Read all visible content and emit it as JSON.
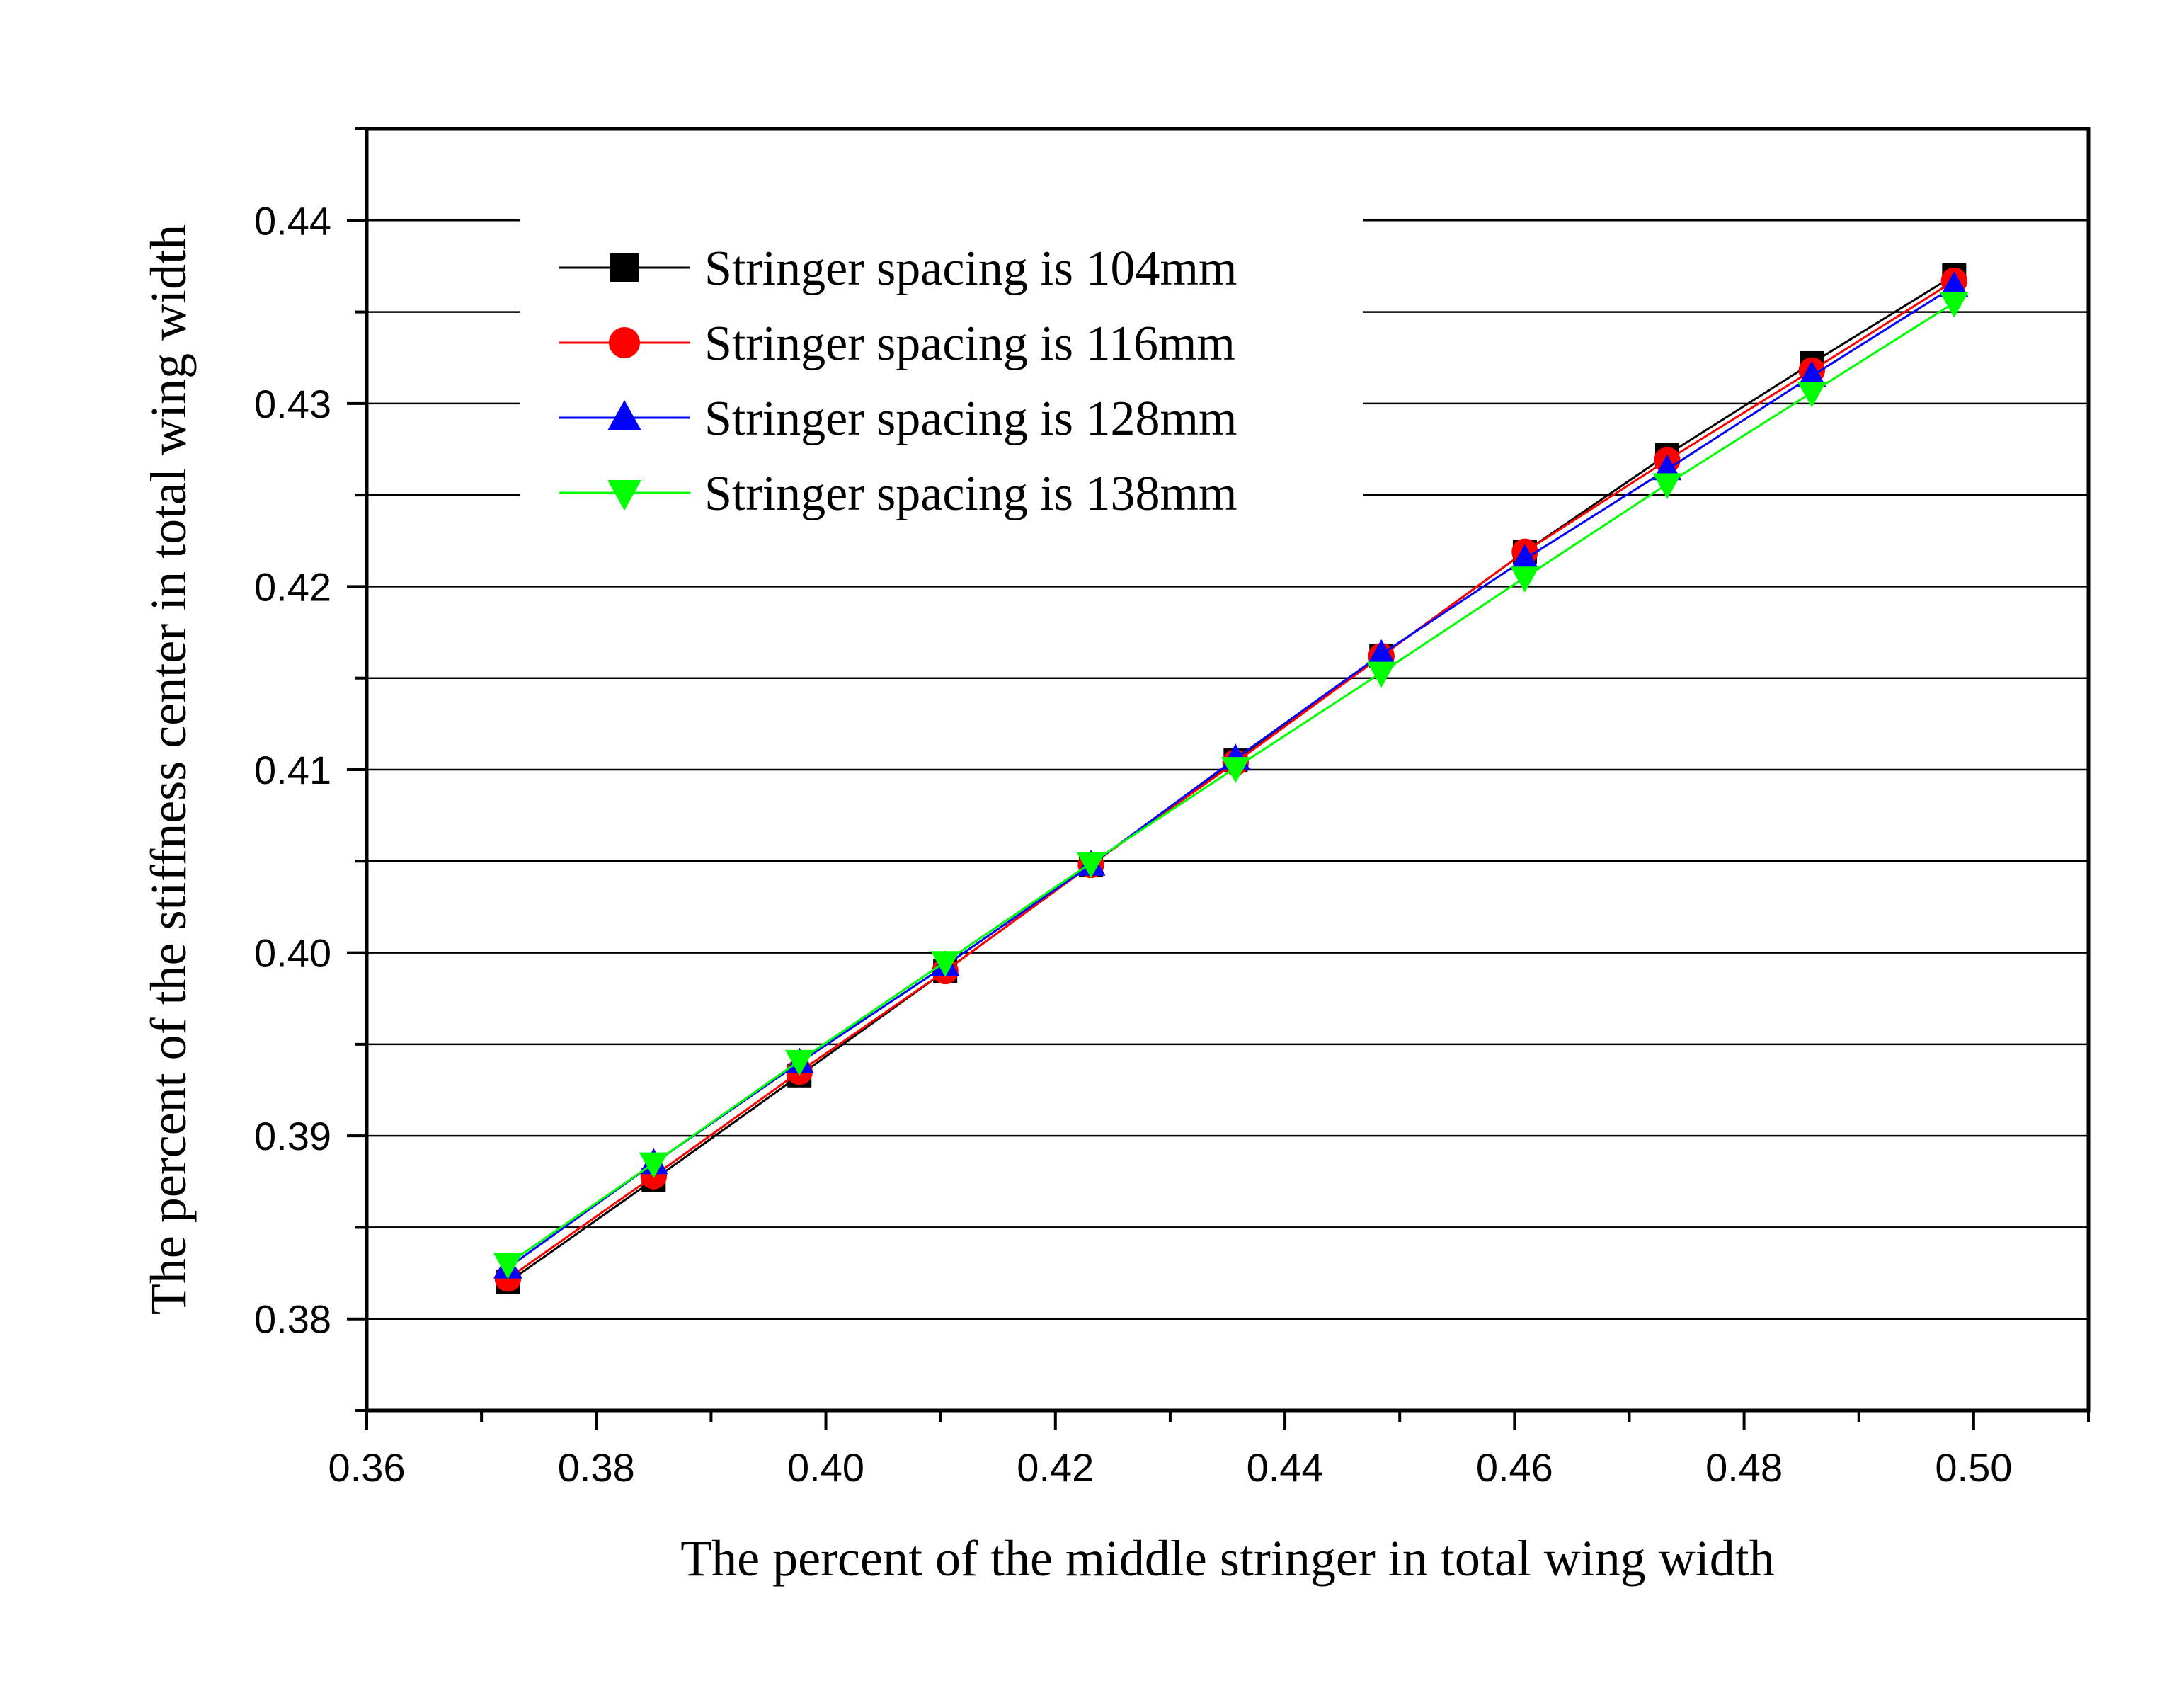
{
  "chart_data": {
    "type": "line",
    "title": "",
    "xlabel": "The percent of the middle stringer in total wing width",
    "ylabel": "The percent of the stiffness center in total wing width",
    "xlim": [
      0.36,
      0.51
    ],
    "ylim": [
      0.375,
      0.445
    ],
    "xticks": [
      "0.36",
      "0.38",
      "0.40",
      "0.42",
      "0.44",
      "0.46",
      "0.48",
      "0.50"
    ],
    "yticks": [
      "0.38",
      "0.39",
      "0.40",
      "0.41",
      "0.42",
      "0.43",
      "0.44"
    ],
    "grid": "horizontal",
    "legend_position": "top-left",
    "x": [
      0.3723,
      0.385,
      0.3977,
      0.4104,
      0.4231,
      0.4357,
      0.4484,
      0.4609,
      0.4733,
      0.4859,
      0.4983
    ],
    "series": [
      {
        "name": "Stringer spacing is 104mm",
        "color": "#000000",
        "marker": "square",
        "values": [
          0.382,
          0.3876,
          0.3933,
          0.399,
          0.4048,
          0.4105,
          0.4162,
          0.4219,
          0.4272,
          0.4322,
          0.437
        ]
      },
      {
        "name": "Stringer spacing is 116mm",
        "color": "#ff0000",
        "marker": "circle",
        "values": [
          0.3822,
          0.3878,
          0.3935,
          0.399,
          0.4048,
          0.4104,
          0.4162,
          0.4219,
          0.4269,
          0.4318,
          0.4367
        ]
      },
      {
        "name": "Stringer spacing is 128mm",
        "color": "#0000ff",
        "marker": "triangle-up",
        "values": [
          0.3828,
          0.3885,
          0.394,
          0.3993,
          0.4048,
          0.4106,
          0.4163,
          0.4215,
          0.4264,
          0.4315,
          0.4364
        ]
      },
      {
        "name": "Stringer spacing is 138mm",
        "color": "#00ff00",
        "marker": "triangle-down",
        "values": [
          0.383,
          0.3885,
          0.3941,
          0.3995,
          0.4049,
          0.4101,
          0.4153,
          0.4205,
          0.4256,
          0.4306,
          0.4355
        ]
      }
    ]
  }
}
